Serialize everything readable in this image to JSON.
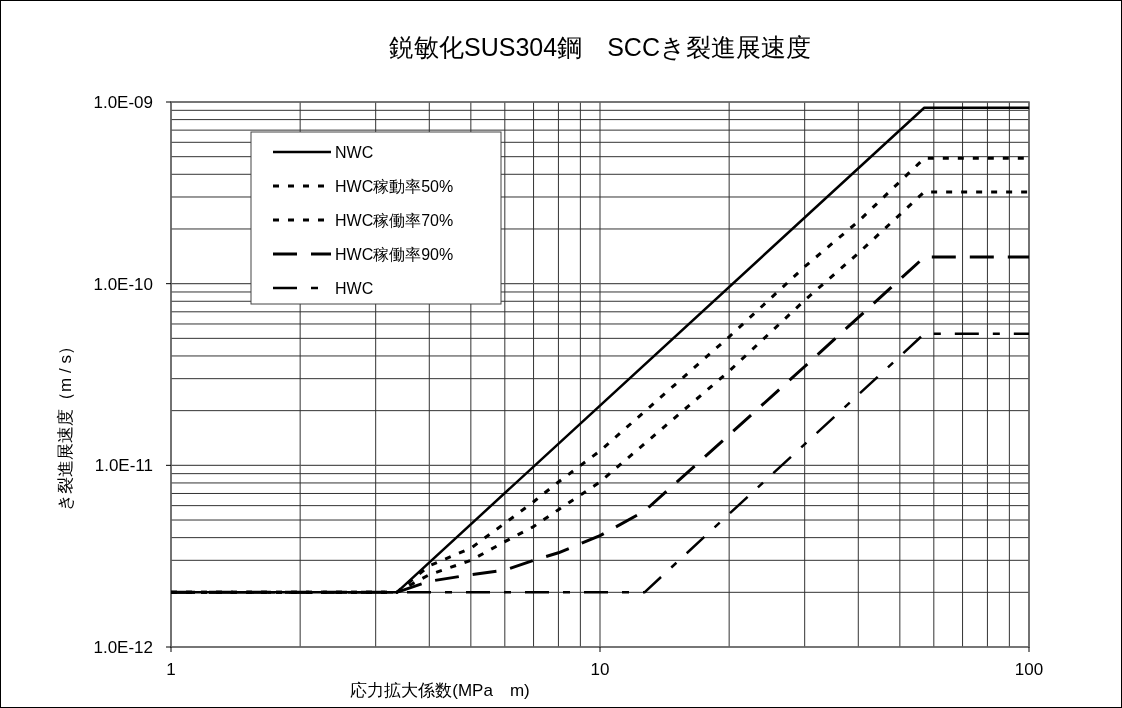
{
  "chart_data": {
    "type": "line",
    "title": "鋭敏化SUS304鋼　SCCき裂進展速度",
    "xlabel": "応力拡大係数(MPa　m)",
    "ylabel": "き裂進展速度（m / s）",
    "log": "xy",
    "xlim": [
      1,
      100
    ],
    "xticks": [
      1,
      10,
      100
    ],
    "ylim": [
      1e-12,
      1e-09
    ],
    "yticks": [
      {
        "value": 1e-12,
        "label": "1.0E-12"
      },
      {
        "value": 1e-11,
        "label": "1.0E-11"
      },
      {
        "value": 1e-10,
        "label": "1.0E-10"
      },
      {
        "value": 1e-09,
        "label": "1.0E-09"
      }
    ],
    "grid": true,
    "legend": "top left",
    "marker": "none",
    "series": [
      {
        "name": "NWC",
        "color": "#000000",
        "line_style": "solid",
        "x": [
          1,
          3.36,
          57,
          100
        ],
        "values": [
          2e-12,
          2e-12,
          9.3e-10,
          9.3e-10
        ]
      },
      {
        "name": "HWC稼動率50%",
        "color": "#000000",
        "line_style": "dotted",
        "x": [
          1,
          3.36,
          4,
          5,
          6,
          7,
          8,
          10,
          20,
          30,
          40,
          57,
          100
        ],
        "values": [
          2e-12,
          2e-12,
          2.8e-12,
          3.5e-12,
          4.8e-12,
          6.3e-12,
          8.1e-12,
          1.2e-11,
          5.1e-11,
          1.24e-10,
          2.2e-10,
          4.9e-10,
          4.9e-10
        ]
      },
      {
        "name": "HWC稼働率70%",
        "color": "#000000",
        "line_style": "dotted",
        "x": [
          1,
          3.36,
          4,
          5,
          6,
          7,
          8,
          10,
          20,
          30,
          40,
          57,
          100
        ],
        "values": [
          2e-12,
          2e-12,
          2.5e-12,
          3e-12,
          3.8e-12,
          4.6e-12,
          5.7e-12,
          8.1e-12,
          3.3e-11,
          8.1e-11,
          1.47e-10,
          3.2e-10,
          3.2e-10
        ]
      },
      {
        "name": "HWC稼働率90%",
        "color": "#000000",
        "line_style": "dashed",
        "x": [
          1,
          3.36,
          4,
          5,
          6,
          7,
          8,
          10,
          12.7,
          20,
          30,
          57,
          100
        ],
        "values": [
          2e-12,
          2e-12,
          2.3e-12,
          2.5e-12,
          2.65e-12,
          3e-12,
          3.3e-12,
          4.1e-12,
          5.6e-12,
          1.47e-11,
          3.5e-11,
          1.4e-10,
          1.4e-10
        ]
      },
      {
        "name": "HWC",
        "color": "#000000",
        "line_style": "dashdot",
        "x": [
          1,
          12.7,
          20,
          57,
          100
        ],
        "values": [
          2e-12,
          2e-12,
          5.4e-12,
          5.3e-11,
          5.3e-11
        ]
      }
    ]
  }
}
